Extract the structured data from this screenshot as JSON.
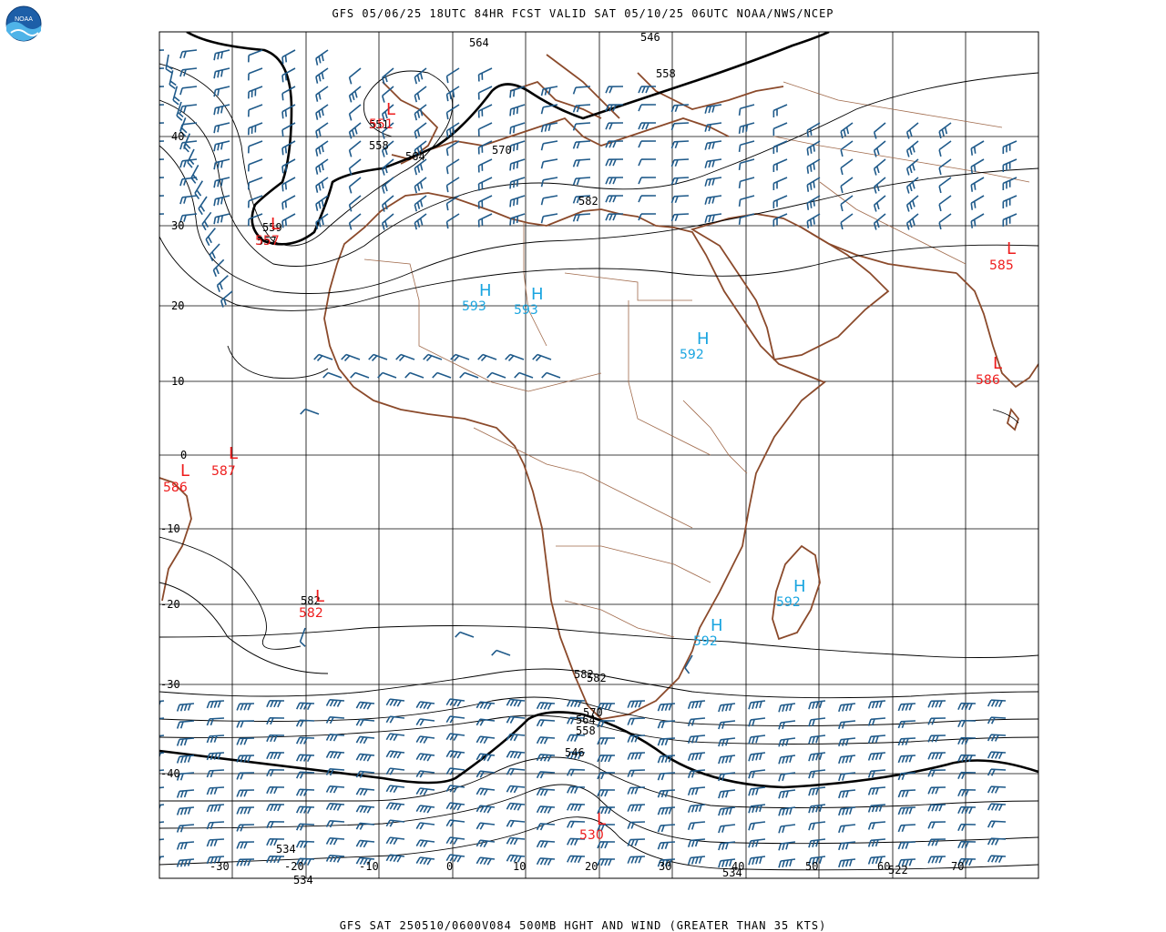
{
  "header": {
    "top": "GFS 05/06/25 18UTC 84HR FCST VALID SAT 05/10/25 06UTC NOAA/NWS/NCEP",
    "bottom": "GFS SAT 250510/0600V084 500MB HGHT AND WIND (GREATER THAN 35 KTS)"
  },
  "logo": {
    "text": "NOAA"
  },
  "lat_labels": [
    "40",
    "30",
    "20",
    "10",
    "0",
    "-10",
    "-20",
    "-30",
    "-40"
  ],
  "lon_labels": [
    "-30",
    "-20",
    "-10",
    "0",
    "10",
    "20",
    "30",
    "40",
    "50",
    "60",
    "70"
  ],
  "contour_labels": [
    "564",
    "546",
    "558",
    "551",
    "558",
    "564",
    "570",
    "582",
    "559",
    "557",
    "534",
    "582",
    "570",
    "564",
    "558",
    "546",
    "534",
    "522",
    "534",
    "582",
    "582"
  ],
  "highs": [
    {
      "letter": "H",
      "value": "593"
    },
    {
      "letter": "H",
      "value": "593"
    },
    {
      "letter": "H",
      "value": "592"
    },
    {
      "letter": "H",
      "value": "592"
    },
    {
      "letter": "H",
      "value": "592"
    }
  ],
  "lows": [
    {
      "letter": "L",
      "value": "551"
    },
    {
      "letter": "L",
      "value": "557"
    },
    {
      "letter": "L",
      "value": "585"
    },
    {
      "letter": "L",
      "value": "586"
    },
    {
      "letter": "L",
      "value": "587"
    },
    {
      "letter": "L",
      "value": "586"
    },
    {
      "letter": "L",
      "value": "582"
    },
    {
      "letter": "L",
      "value": "530"
    }
  ],
  "colors": {
    "high": "#1aa5e0",
    "low": "#ee1c1c",
    "coast": "#8b4a2b",
    "border": "#a0694a",
    "contour": "#000000",
    "barb": "#1f5a8a",
    "grid": "#000000"
  }
}
